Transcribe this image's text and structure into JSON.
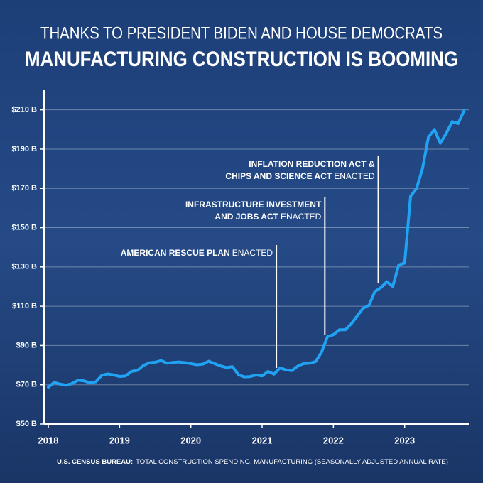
{
  "chart_data": {
    "type": "line",
    "title": "THANKS TO PRESIDENT BIDEN AND HOUSE DEMOCRATS",
    "subtitle": "MANUFACTURING CONSTRUCTION IS BOOMING",
    "x": [
      2018,
      2018.083,
      2018.167,
      2018.25,
      2018.333,
      2018.417,
      2018.5,
      2018.583,
      2018.667,
      2018.75,
      2018.833,
      2018.917,
      2019,
      2019.083,
      2019.167,
      2019.25,
      2019.333,
      2019.417,
      2019.5,
      2019.583,
      2019.667,
      2019.75,
      2019.833,
      2019.917,
      2020,
      2020.083,
      2020.167,
      2020.25,
      2020.333,
      2020.417,
      2020.5,
      2020.583,
      2020.667,
      2020.75,
      2020.833,
      2020.917,
      2021,
      2021.083,
      2021.167,
      2021.25,
      2021.333,
      2021.417,
      2021.5,
      2021.583,
      2021.667,
      2021.75,
      2021.833,
      2021.917,
      2022,
      2022.083,
      2022.167,
      2022.25,
      2022.333,
      2022.417,
      2022.5,
      2022.583,
      2022.667,
      2022.75,
      2022.833,
      2022.917,
      2023,
      2023.083,
      2023.167,
      2023.25,
      2023.333,
      2023.417,
      2023.5,
      2023.583,
      2023.667,
      2023.75,
      2023.833
    ],
    "series": [
      {
        "color": "#1fa3f2",
        "values": [
          68.8,
          71.2,
          70.3,
          69.8,
          70.6,
          72.3,
          72.0,
          71.0,
          71.5,
          74.8,
          75.5,
          75.0,
          74.2,
          74.5,
          76.8,
          77.3,
          79.8,
          81.2,
          81.5,
          82.3,
          81.0,
          81.4,
          81.6,
          81.3,
          80.8,
          80.2,
          80.5,
          82.0,
          80.8,
          79.6,
          78.8,
          79.2,
          75.2,
          74.0,
          74.2,
          75.0,
          74.5,
          76.8,
          75.4,
          78.6,
          77.6,
          77.2,
          79.5,
          80.8,
          81.0,
          81.8,
          86.5,
          94.5,
          95.5,
          98,
          98,
          101,
          105,
          109,
          110.5,
          117.5,
          119.5,
          122.5,
          120,
          131,
          132,
          166,
          170,
          180,
          196,
          200,
          193,
          198,
          204,
          203,
          209.5
        ]
      }
    ],
    "xlim": [
      2017.94,
      2023.9
    ],
    "xticks": [
      2018,
      2019,
      2020,
      2021,
      2022,
      2023
    ],
    "ylim": [
      50,
      220
    ],
    "yticks": [
      {
        "value": 50,
        "label": "$50 B"
      },
      {
        "value": 70,
        "label": "$70 B"
      },
      {
        "value": 90,
        "label": "$90 B"
      },
      {
        "value": 110,
        "label": "$110 B"
      },
      {
        "value": 130,
        "label": "$130 B"
      },
      {
        "value": 150,
        "label": "$150 B"
      },
      {
        "value": 170,
        "label": "$170 B"
      },
      {
        "value": 190,
        "label": "$190 B"
      },
      {
        "value": 210,
        "label": "$210 B"
      }
    ],
    "grid": true,
    "annotations": [
      {
        "x": 2021.2,
        "lines": [
          {
            "bold": "AMERICAN RESCUE PLAN",
            "regular": "ENACTED"
          }
        ]
      },
      {
        "x": 2021.88,
        "lines": [
          {
            "bold": "INFRASTRUCTURE INVESTMENT"
          },
          {
            "bold": "AND JOBS ACT",
            "regular": "ENACTED"
          }
        ]
      },
      {
        "x": 2022.63,
        "lines": [
          {
            "bold": "INFLATION REDUCTION ACT &"
          },
          {
            "bold": "CHIPS AND SCIENCE ACT",
            "regular": "ENACTED"
          }
        ]
      }
    ],
    "source": {
      "bold": "U.S. CENSUS BUREAU:",
      "regular": "TOTAL CONSTRUCTION SPENDING, MANUFACTURING (SEASONALLY ADJUSTED ANNUAL RATE)"
    }
  }
}
